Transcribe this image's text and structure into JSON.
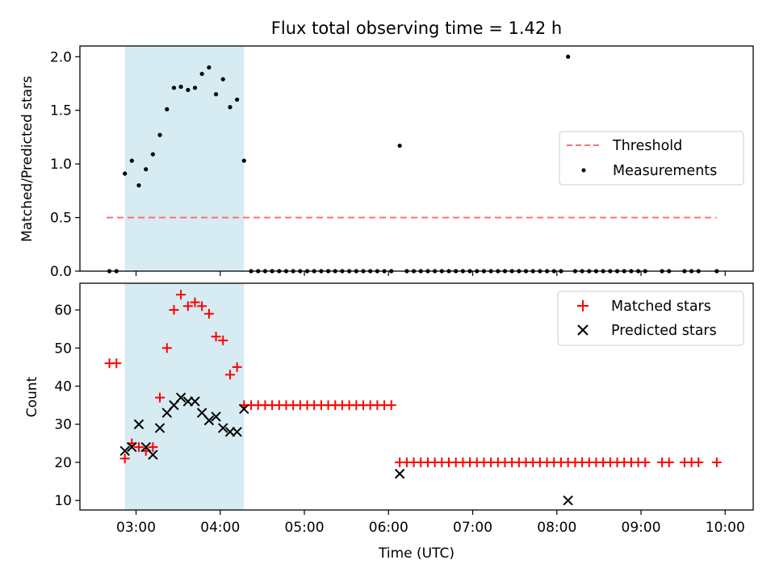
{
  "chart_data": {
    "type": "scatter",
    "title": "Flux total observing time = 1.42 h",
    "xlabel": "Time (UTC)",
    "xlim": [
      2.333,
      10.333
    ],
    "xticks": [
      {
        "value": 3,
        "label": "03:00"
      },
      {
        "value": 4,
        "label": "04:00"
      },
      {
        "value": 5,
        "label": "05:00"
      },
      {
        "value": 6,
        "label": "06:00"
      },
      {
        "value": 7,
        "label": "07:00"
      },
      {
        "value": 8,
        "label": "08:00"
      },
      {
        "value": 9,
        "label": "09:00"
      },
      {
        "value": 10,
        "label": "10:00"
      }
    ],
    "shaded_span": {
      "start": 2.867,
      "end": 4.283,
      "color": "#add8e6"
    },
    "panels": [
      {
        "ylabel": "Matched/Predicted stars",
        "ylim": [
          0,
          2.1
        ],
        "yticks": [
          {
            "value": 0,
            "label": "0.0"
          },
          {
            "value": 0.5,
            "label": "0.5"
          },
          {
            "value": 1.0,
            "label": "1.0"
          },
          {
            "value": 1.5,
            "label": "1.5"
          },
          {
            "value": 2.0,
            "label": "2.0"
          }
        ],
        "legend_position": "center-right",
        "threshold": {
          "name": "Threshold",
          "value": 0.5,
          "x_start": 2.65,
          "x_end": 9.9,
          "color": "#ff7070"
        },
        "series": [
          {
            "name": "Measurements",
            "marker": "dot",
            "color": "#000000",
            "x": [
              2.867,
              2.95,
              3.033,
              3.117,
              3.2,
              3.283,
              3.367,
              3.45,
              3.533,
              3.617,
              3.7,
              3.783,
              3.867,
              3.95,
              4.033,
              4.117,
              4.2,
              4.283,
              6.133,
              8.133
            ],
            "y": [
              0.91,
              1.03,
              0.8,
              0.95,
              1.09,
              1.27,
              1.51,
              1.71,
              1.72,
              1.69,
              1.71,
              1.84,
              1.9,
              1.65,
              1.79,
              1.53,
              1.6,
              1.03,
              1.17,
              2.0
            ]
          },
          {
            "name": "",
            "marker": "dot",
            "color": "#000000",
            "x_groups": [
              {
                "x": [
                  2.683,
                  2.767
                ]
              },
              {
                "from": 4.367,
                "to": 6.05,
                "step": 0.0833
              },
              {
                "from": 6.217,
                "to": 8.05,
                "step": 0.0833
              },
              {
                "from": 8.217,
                "to": 9.05,
                "step": 0.0833
              },
              {
                "x": [
                  9.25,
                  9.333,
                  9.517,
                  9.6,
                  9.683,
                  9.9
                ]
              }
            ],
            "y_constant": 0
          }
        ]
      },
      {
        "ylabel": "Count",
        "ylim": [
          7.5,
          67
        ],
        "yticks": [
          {
            "value": 10,
            "label": "10"
          },
          {
            "value": 20,
            "label": "20"
          },
          {
            "value": 30,
            "label": "30"
          },
          {
            "value": 40,
            "label": "40"
          },
          {
            "value": 50,
            "label": "50"
          },
          {
            "value": 60,
            "label": "60"
          }
        ],
        "legend_position": "top-right",
        "series": [
          {
            "name": "Matched stars",
            "marker": "plus",
            "color": "#ff0000",
            "x": [
              2.683,
              2.767,
              2.867,
              2.95,
              3.033,
              3.117,
              3.2,
              3.283,
              3.367,
              3.45,
              3.533,
              3.617,
              3.7,
              3.783,
              3.867,
              3.95,
              4.033,
              4.117,
              4.2,
              4.283,
              6.133,
              8.133
            ],
            "y": [
              46,
              46,
              21,
              25,
              24,
              23,
              24,
              37,
              50,
              60,
              64,
              61,
              62,
              61,
              59,
              53,
              52,
              43,
              45,
              35,
              20,
              20
            ],
            "flat_groups": [
              {
                "from": 4.367,
                "to": 6.05,
                "step": 0.0833,
                "y": 35
              },
              {
                "from": 6.217,
                "to": 8.05,
                "step": 0.0833,
                "y": 20
              },
              {
                "from": 8.217,
                "to": 9.05,
                "step": 0.0833,
                "y": 20
              },
              {
                "x": [
                  9.25,
                  9.333,
                  9.517,
                  9.6,
                  9.683,
                  9.9
                ],
                "y": 20
              }
            ]
          },
          {
            "name": "Predicted stars",
            "marker": "x",
            "color": "#000000",
            "x": [
              2.867,
              2.95,
              3.033,
              3.117,
              3.2,
              3.283,
              3.367,
              3.45,
              3.533,
              3.617,
              3.7,
              3.783,
              3.867,
              3.95,
              4.033,
              4.117,
              4.2,
              4.283,
              6.133,
              8.133
            ],
            "y": [
              23,
              24,
              30,
              24,
              22,
              29,
              33,
              35,
              37,
              36,
              36,
              33,
              31,
              32,
              29,
              28,
              28,
              34,
              17,
              10
            ]
          }
        ]
      }
    ]
  }
}
